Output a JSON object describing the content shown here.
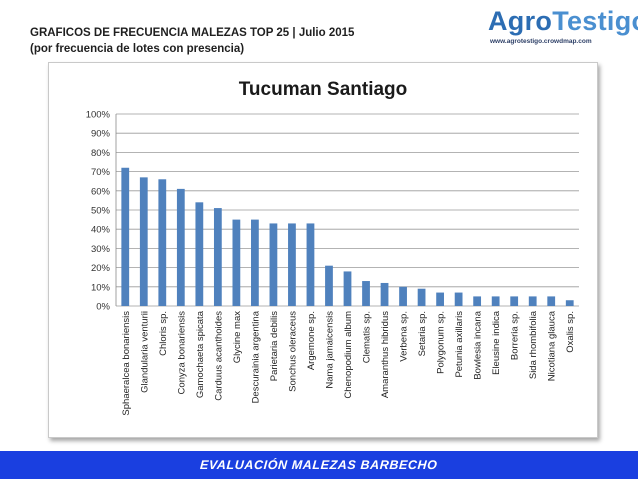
{
  "header": {
    "title": "GRAFICOS DE FRECUENCIA MALEZAS TOP 25 | Julio 2015",
    "subtitle": "(por frecuencia de lotes con presencia)"
  },
  "logo": {
    "text_part1": "Agro",
    "text_part2": "Testigo",
    "url": "www.agrotestigo.crowdmap.com"
  },
  "footer": {
    "text": "EVALUACIÓN MALEZAS BARBECHO"
  },
  "colors": {
    "bar": "#4f81bd",
    "footer_bg": "#1a3fe0",
    "logo_blue": "#2c6db3"
  },
  "chart_data": {
    "type": "bar",
    "title": "Tucuman Santiago",
    "xlabel": "",
    "ylabel": "",
    "ylim": [
      0,
      100
    ],
    "y_ticks": [
      "0%",
      "10%",
      "20%",
      "30%",
      "40%",
      "50%",
      "60%",
      "70%",
      "80%",
      "90%",
      "100%"
    ],
    "grid": true,
    "legend": "none",
    "categories": [
      "Sphaeralcea bonariensis",
      "Glandularia venturii",
      "Chloris sp.",
      "Conyza bonariensis",
      "Gamochaeta spicata",
      "Carduus acanthoides",
      "Glycine max",
      "Descurainia argentina",
      "Parietaria debilis",
      "Sonchus oleraceus",
      "Argemone sp.",
      "Nama jamaicensis",
      "Chenopodium album",
      "Clematis sp.",
      "Amaranthus hibridus",
      "Verbena sp.",
      "Setaria sp.",
      "Polygonum sp.",
      "Petunia axillaris",
      "Bowlesia incana",
      "Eleusine indica",
      "Borreria sp.",
      "Sida rhombifolia",
      "Nicotiana glauca",
      "Oxalis sp."
    ],
    "values": [
      72,
      67,
      66,
      61,
      54,
      51,
      45,
      45,
      43,
      43,
      43,
      21,
      18,
      13,
      12,
      10,
      9,
      7,
      7,
      5,
      5,
      5,
      5,
      5,
      3
    ]
  }
}
